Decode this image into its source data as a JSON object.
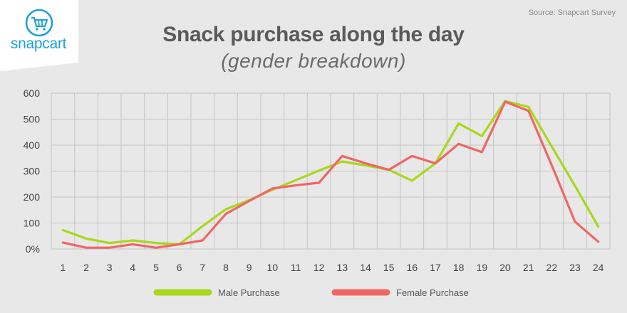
{
  "brand": {
    "name": "snapcart",
    "logo_icon": "cart-icon",
    "color": "#1ea1d8"
  },
  "source": "Source: Snapcart Survey",
  "chart_data": {
    "type": "line",
    "title": "Snack purchase along the day",
    "subtitle": "(gender breakdown)",
    "xlabel": "",
    "ylabel": "",
    "x": [
      1,
      2,
      3,
      4,
      5,
      6,
      7,
      8,
      9,
      10,
      11,
      12,
      13,
      14,
      15,
      16,
      17,
      18,
      19,
      20,
      21,
      22,
      23,
      24
    ],
    "y_ticks": [
      0,
      100,
      200,
      300,
      400,
      500,
      600
    ],
    "y_tick_labels": [
      "0%",
      "100",
      "200",
      "300",
      "400",
      "500",
      "600"
    ],
    "ylim": [
      0,
      600
    ],
    "grid": true,
    "legend_position": "bottom",
    "series": [
      {
        "name": "Male Purchase",
        "color": "#a8d81b",
        "values": [
          73,
          40,
          23,
          33,
          23,
          18,
          88,
          153,
          188,
          228,
          265,
          302,
          337,
          322,
          305,
          263,
          330,
          483,
          435,
          570,
          547,
          395,
          243,
          86
        ]
      },
      {
        "name": "Female Purchase",
        "color": "#f06664",
        "values": [
          25,
          5,
          5,
          18,
          5,
          18,
          33,
          135,
          185,
          233,
          245,
          255,
          358,
          330,
          305,
          358,
          330,
          405,
          373,
          567,
          532,
          323,
          105,
          28
        ]
      }
    ]
  }
}
